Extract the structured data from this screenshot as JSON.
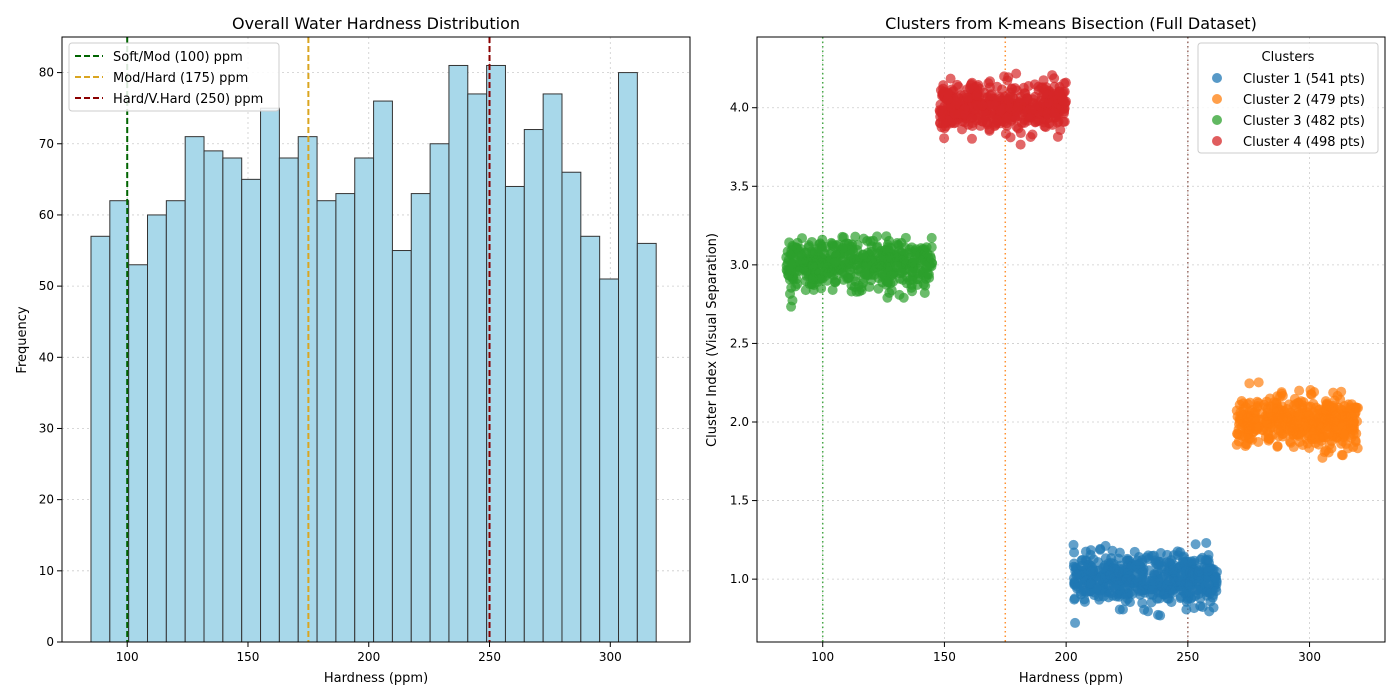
{
  "chart_data": [
    {
      "type": "bar",
      "title": "Overall Water Hardness Distribution",
      "xlabel": "Hardness (ppm)",
      "ylabel": "Frequency",
      "xlim": [
        73,
        333
      ],
      "ylim": [
        0,
        85
      ],
      "xticks": [
        100,
        150,
        200,
        250,
        300
      ],
      "yticks": [
        0,
        10,
        20,
        30,
        40,
        50,
        60,
        70,
        80
      ],
      "bin_start": 85,
      "bin_width": 7.8,
      "values": [
        57,
        62,
        53,
        60,
        62,
        71,
        69,
        68,
        65,
        75,
        68,
        71,
        62,
        63,
        68,
        76,
        55,
        63,
        70,
        81,
        77,
        81,
        64,
        72,
        77,
        66,
        57,
        51,
        80,
        56
      ],
      "bar_color": "#a8d8ea",
      "grid": true,
      "legend_position": "top-left",
      "threshold_lines": [
        {
          "x": 100,
          "label": "Soft/Mod (100) ppm",
          "color": "#006400"
        },
        {
          "x": 175,
          "label": "Mod/Hard (175) ppm",
          "color": "#daa520"
        },
        {
          "x": 250,
          "label": "Hard/V.Hard (250) ppm",
          "color": "#8b0000"
        }
      ]
    },
    {
      "type": "scatter",
      "title": "Clusters from K-means Bisection (Full Dataset)",
      "xlabel": "Hardness (ppm)",
      "ylabel": "Cluster Index (Visual Separation)",
      "xlim": [
        73,
        331
      ],
      "ylim": [
        0.6,
        4.45
      ],
      "xticks": [
        100,
        150,
        200,
        250,
        300
      ],
      "yticks": [
        1.0,
        1.5,
        2.0,
        2.5,
        3.0,
        3.5,
        4.0
      ],
      "grid": true,
      "legend_title": "Clusters",
      "legend_position": "top-right",
      "reference_lines": [
        {
          "x": 100,
          "color": "#2ca02c"
        },
        {
          "x": 175,
          "color": "#ff7f0e"
        },
        {
          "x": 250,
          "color": "#8c564b"
        }
      ],
      "series": [
        {
          "name": "Cluster 1 (541 pts)",
          "color": "#1f77b4",
          "count": 541,
          "x_range": [
            203,
            262
          ],
          "y_center": 1.0,
          "y_spread": 0.08
        },
        {
          "name": "Cluster 2 (479 pts)",
          "color": "#ff7f0e",
          "count": 479,
          "x_range": [
            270,
            320
          ],
          "y_center": 2.0,
          "y_spread": 0.08
        },
        {
          "name": "Cluster 3 (482 pts)",
          "color": "#2ca02c",
          "count": 482,
          "x_range": [
            85,
            145
          ],
          "y_center": 3.0,
          "y_spread": 0.08
        },
        {
          "name": "Cluster 4 (498 pts)",
          "color": "#d62728",
          "count": 498,
          "x_range": [
            148,
            200
          ],
          "y_center": 4.0,
          "y_spread": 0.08
        }
      ]
    }
  ]
}
